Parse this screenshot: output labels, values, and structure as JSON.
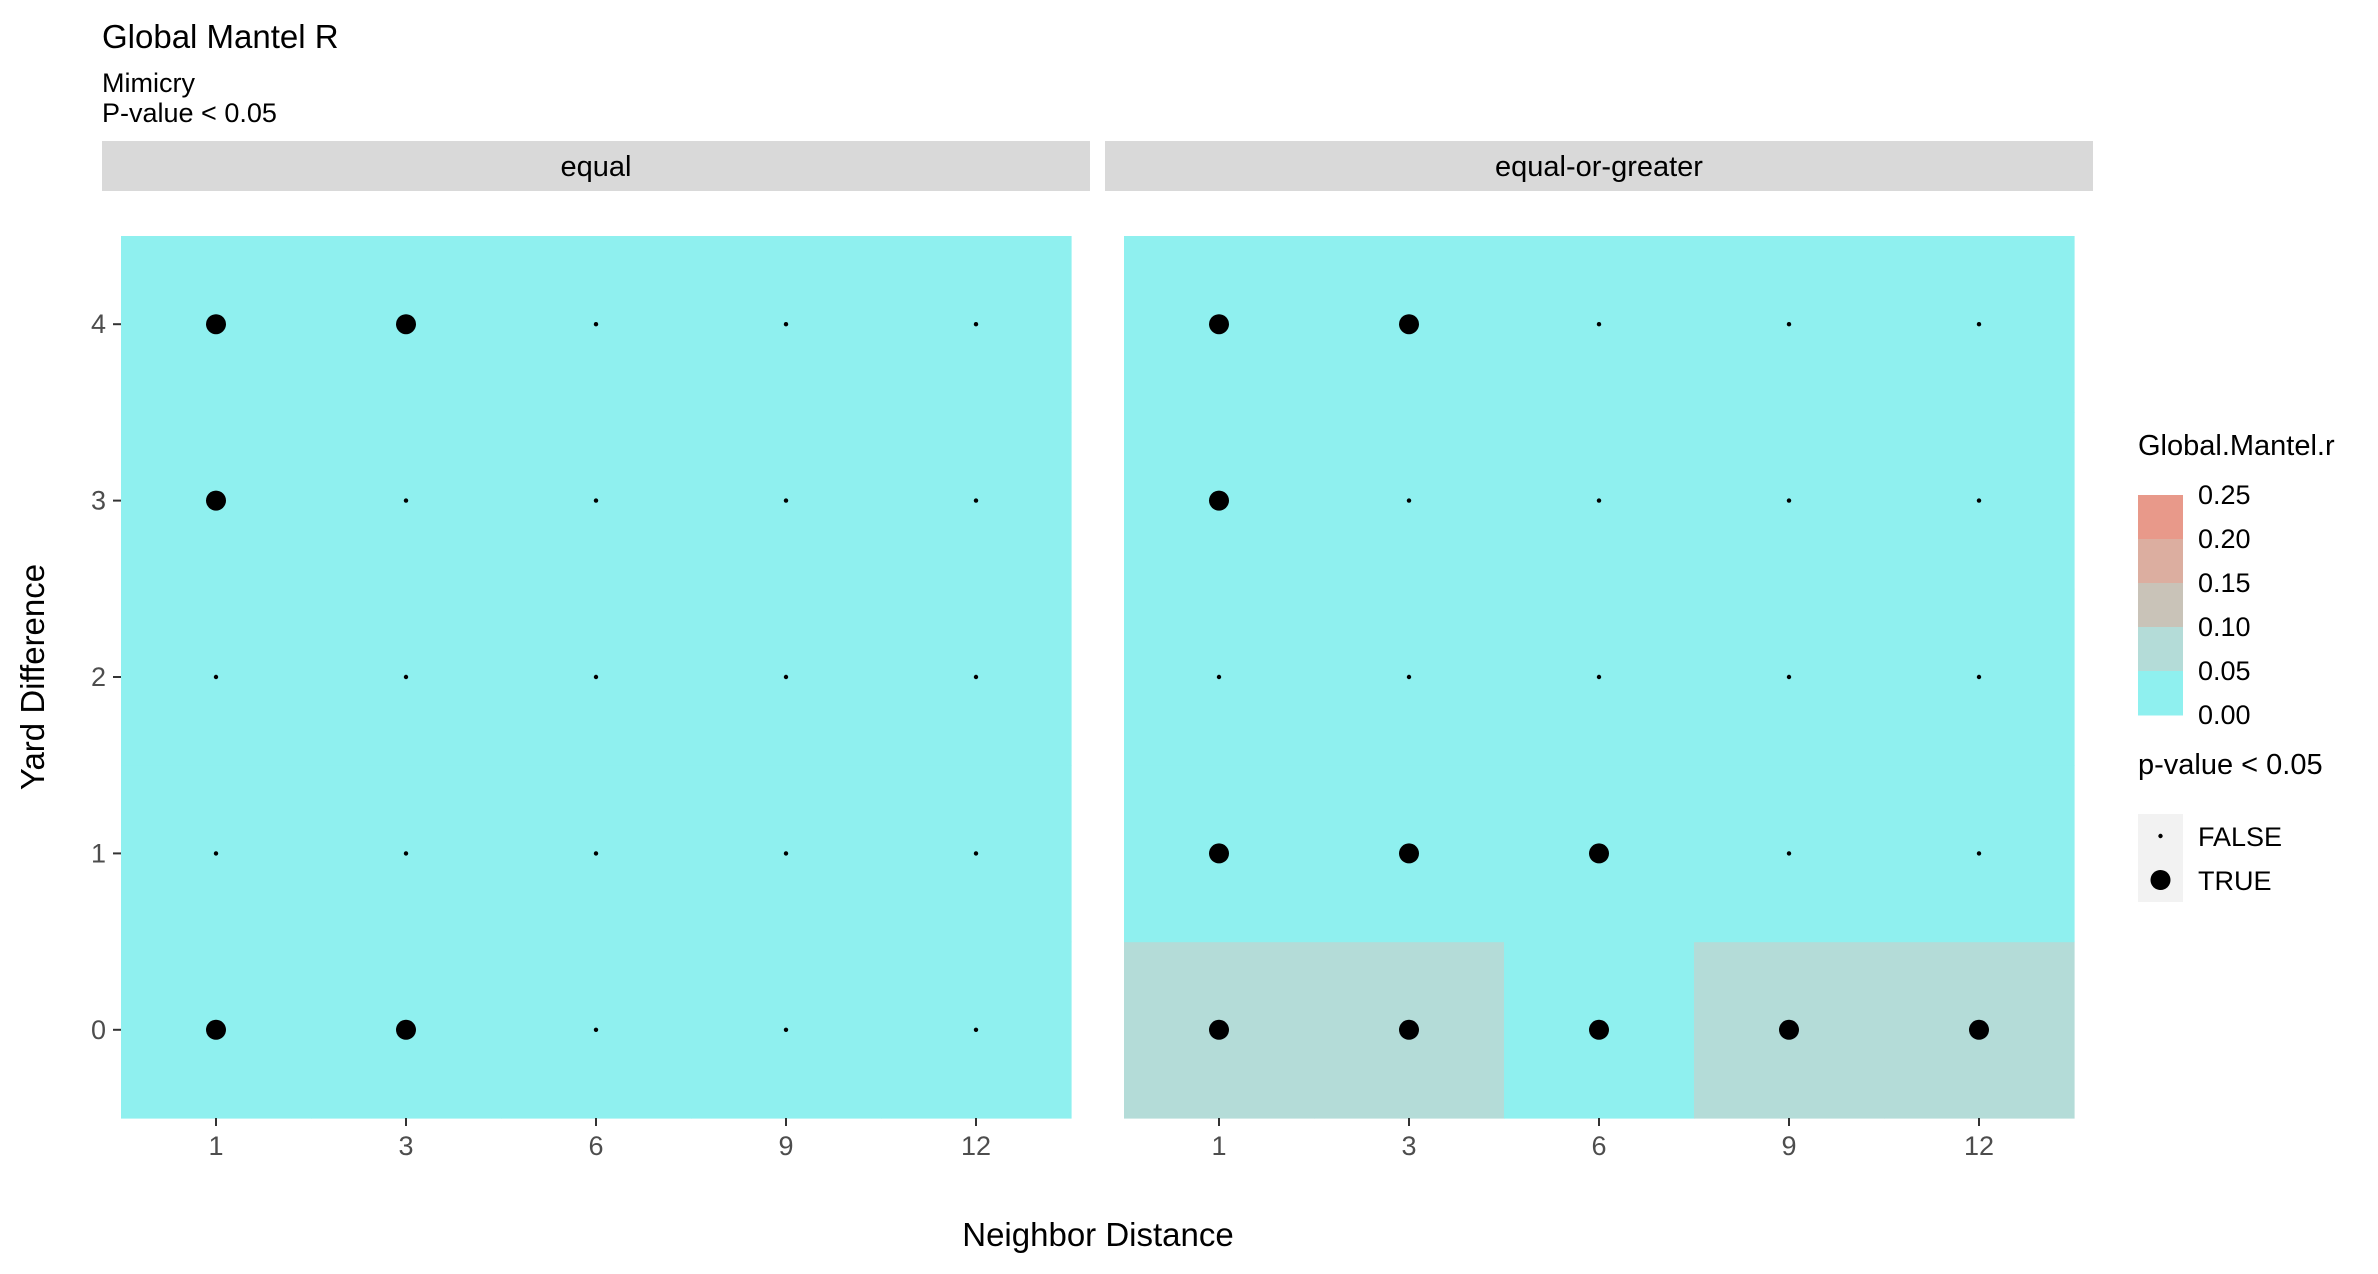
{
  "chart_data": {
    "type": "heatmap",
    "title": "Global Mantel R",
    "subtitle_lines": [
      "Mimicry",
      "P-value < 0.05"
    ],
    "xlabel": "Neighbor Distance",
    "ylabel": "Yard Difference",
    "x_categories": [
      "1",
      "3",
      "6",
      "9",
      "12"
    ],
    "y_categories": [
      "0",
      "1",
      "2",
      "3",
      "4"
    ],
    "facets": [
      {
        "label": "equal",
        "cells": [
          {
            "x": "1",
            "y": "0",
            "r": 0.0,
            "sig": true
          },
          {
            "x": "3",
            "y": "0",
            "r": 0.0,
            "sig": true
          },
          {
            "x": "6",
            "y": "0",
            "r": 0.0,
            "sig": false
          },
          {
            "x": "9",
            "y": "0",
            "r": 0.0,
            "sig": false
          },
          {
            "x": "12",
            "y": "0",
            "r": 0.0,
            "sig": false
          },
          {
            "x": "1",
            "y": "1",
            "r": 0.0,
            "sig": false
          },
          {
            "x": "3",
            "y": "1",
            "r": 0.0,
            "sig": false
          },
          {
            "x": "6",
            "y": "1",
            "r": 0.0,
            "sig": false
          },
          {
            "x": "9",
            "y": "1",
            "r": 0.0,
            "sig": false
          },
          {
            "x": "12",
            "y": "1",
            "r": 0.0,
            "sig": false
          },
          {
            "x": "1",
            "y": "2",
            "r": 0.0,
            "sig": false
          },
          {
            "x": "3",
            "y": "2",
            "r": 0.0,
            "sig": false
          },
          {
            "x": "6",
            "y": "2",
            "r": 0.0,
            "sig": false
          },
          {
            "x": "9",
            "y": "2",
            "r": 0.0,
            "sig": false
          },
          {
            "x": "12",
            "y": "2",
            "r": 0.0,
            "sig": false
          },
          {
            "x": "1",
            "y": "3",
            "r": 0.0,
            "sig": true
          },
          {
            "x": "3",
            "y": "3",
            "r": 0.0,
            "sig": false
          },
          {
            "x": "6",
            "y": "3",
            "r": 0.0,
            "sig": false
          },
          {
            "x": "9",
            "y": "3",
            "r": 0.0,
            "sig": false
          },
          {
            "x": "12",
            "y": "3",
            "r": 0.0,
            "sig": false
          },
          {
            "x": "1",
            "y": "4",
            "r": 0.0,
            "sig": true
          },
          {
            "x": "3",
            "y": "4",
            "r": 0.0,
            "sig": true
          },
          {
            "x": "6",
            "y": "4",
            "r": 0.0,
            "sig": false
          },
          {
            "x": "9",
            "y": "4",
            "r": 0.0,
            "sig": false
          },
          {
            "x": "12",
            "y": "4",
            "r": 0.0,
            "sig": false
          }
        ]
      },
      {
        "label": "equal-or-greater",
        "cells": [
          {
            "x": "1",
            "y": "0",
            "r": 0.07,
            "sig": true
          },
          {
            "x": "3",
            "y": "0",
            "r": 0.07,
            "sig": true
          },
          {
            "x": "6",
            "y": "0",
            "r": 0.0,
            "sig": true
          },
          {
            "x": "9",
            "y": "0",
            "r": 0.07,
            "sig": true
          },
          {
            "x": "12",
            "y": "0",
            "r": 0.07,
            "sig": true
          },
          {
            "x": "1",
            "y": "1",
            "r": 0.0,
            "sig": true
          },
          {
            "x": "3",
            "y": "1",
            "r": 0.0,
            "sig": true
          },
          {
            "x": "6",
            "y": "1",
            "r": 0.0,
            "sig": true
          },
          {
            "x": "9",
            "y": "1",
            "r": 0.0,
            "sig": false
          },
          {
            "x": "12",
            "y": "1",
            "r": 0.0,
            "sig": false
          },
          {
            "x": "1",
            "y": "2",
            "r": 0.0,
            "sig": false
          },
          {
            "x": "3",
            "y": "2",
            "r": 0.0,
            "sig": false
          },
          {
            "x": "6",
            "y": "2",
            "r": 0.0,
            "sig": false
          },
          {
            "x": "9",
            "y": "2",
            "r": 0.0,
            "sig": false
          },
          {
            "x": "12",
            "y": "2",
            "r": 0.0,
            "sig": false
          },
          {
            "x": "1",
            "y": "3",
            "r": 0.0,
            "sig": true
          },
          {
            "x": "3",
            "y": "3",
            "r": 0.0,
            "sig": false
          },
          {
            "x": "6",
            "y": "3",
            "r": 0.0,
            "sig": false
          },
          {
            "x": "9",
            "y": "3",
            "r": 0.0,
            "sig": false
          },
          {
            "x": "12",
            "y": "3",
            "r": 0.0,
            "sig": false
          },
          {
            "x": "1",
            "y": "4",
            "r": 0.0,
            "sig": true
          },
          {
            "x": "3",
            "y": "4",
            "r": 0.0,
            "sig": true
          },
          {
            "x": "6",
            "y": "4",
            "r": 0.0,
            "sig": false
          },
          {
            "x": "9",
            "y": "4",
            "r": 0.0,
            "sig": false
          },
          {
            "x": "12",
            "y": "4",
            "r": 0.0,
            "sig": false
          }
        ]
      }
    ],
    "legend_fill": {
      "title": "Global.Mantel.r",
      "breaks": [
        "0.25",
        "0.20",
        "0.15",
        "0.10",
        "0.05",
        "0.00"
      ],
      "colors": [
        "#e8998a",
        "#dcaea0",
        "#c9c3b8",
        "#b4dcd8",
        "#8ff0ef"
      ]
    },
    "legend_size": {
      "title": "p-value < 0.05",
      "entries": [
        "FALSE",
        "TRUE"
      ]
    },
    "legend_placement": "right",
    "colors": {
      "tile_low": "#8ff0ef",
      "tile_mid": "#b4d9d7",
      "strip_bg": "#d9d9d9",
      "legend_key_bg": "#f2f2f2",
      "point": "#000000"
    },
    "grid": false
  }
}
